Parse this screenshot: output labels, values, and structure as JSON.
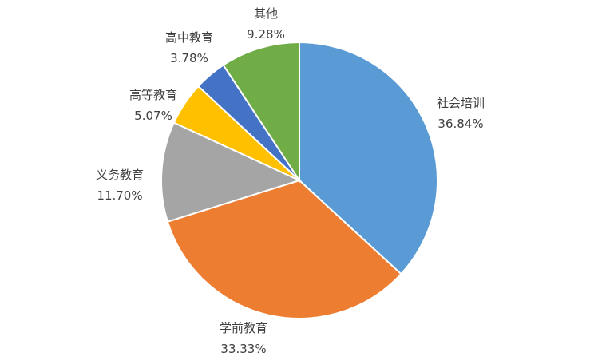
{
  "chart_data": {
    "type": "pie",
    "start_angle": "top, clockwise",
    "slices": [
      {
        "label": "社会培训",
        "value": 36.84,
        "value_label": "36.84%",
        "color": "#5B9BD5"
      },
      {
        "label": "学前教育",
        "value": 33.33,
        "value_label": "33.33%",
        "color": "#ED7D31"
      },
      {
        "label": "义务教育",
        "value": 11.7,
        "value_label": "11.70%",
        "color": "#A5A5A5"
      },
      {
        "label": "高等教育",
        "value": 5.07,
        "value_label": "5.07%",
        "color": "#FFC000"
      },
      {
        "label": "高中教育",
        "value": 3.78,
        "value_label": "3.78%",
        "color": "#4472C4"
      },
      {
        "label": "其他",
        "value": 9.28,
        "value_label": "9.28%",
        "color": "#70AD47"
      }
    ]
  }
}
